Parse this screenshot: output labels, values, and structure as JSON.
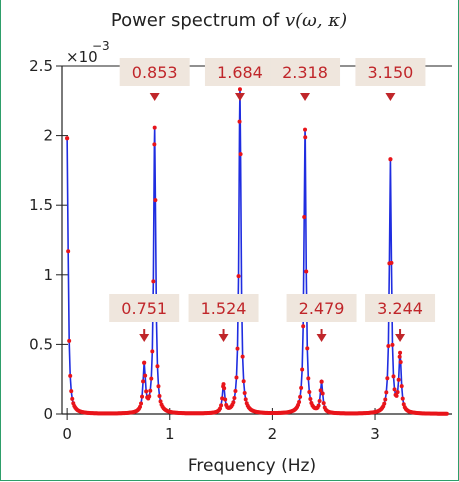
{
  "chart_data": {
    "type": "line",
    "title_prefix": "Power spectrum of ",
    "title_math": "v(ω, κ)",
    "xlabel": "Frequency (Hz)",
    "ylabel": "",
    "scale_label": "×10",
    "scale_exponent": "−3",
    "xlim": [
      -0.05,
      3.75
    ],
    "ylim": [
      0,
      2.5
    ],
    "x_ticks": [
      0,
      1,
      2,
      3
    ],
    "x_tick_labels": [
      "0",
      "1",
      "2",
      "3"
    ],
    "y_ticks": [
      0,
      0.5,
      1,
      1.5,
      2,
      2.5
    ],
    "y_tick_labels": [
      "0",
      "0.5",
      "1",
      "1.5",
      "2",
      "2.5"
    ],
    "grid": false,
    "colors": {
      "line": "#1f2de0",
      "markers": "#e8141a",
      "arrows": "#c0262a",
      "annotation_bg": "#efe6dd"
    },
    "peaks": [
      {
        "x": 0.0,
        "y": 1.98,
        "w": 0.012
      },
      {
        "x": 0.751,
        "y": 0.34,
        "w": 0.014
      },
      {
        "x": 0.853,
        "y": 2.05,
        "w": 0.012
      },
      {
        "x": 1.524,
        "y": 0.2,
        "w": 0.014
      },
      {
        "x": 1.684,
        "y": 2.33,
        "w": 0.012
      },
      {
        "x": 2.318,
        "y": 2.04,
        "w": 0.012
      },
      {
        "x": 2.479,
        "y": 0.22,
        "w": 0.014
      },
      {
        "x": 3.15,
        "y": 1.82,
        "w": 0.012
      },
      {
        "x": 3.244,
        "y": 0.41,
        "w": 0.014
      }
    ],
    "annotations": [
      {
        "label": "0.853",
        "x": 0.853,
        "row": "top"
      },
      {
        "label": "1.684",
        "x": 1.684,
        "row": "top"
      },
      {
        "label": "2.318",
        "x": 2.318,
        "row": "top"
      },
      {
        "label": "3.150",
        "x": 3.15,
        "row": "top"
      },
      {
        "label": "0.751",
        "x": 0.751,
        "row": "bottom"
      },
      {
        "label": "1.524",
        "x": 1.524,
        "row": "bottom"
      },
      {
        "label": "2.479",
        "x": 2.479,
        "row": "bottom"
      },
      {
        "label": "3.244",
        "x": 3.244,
        "row": "bottom"
      }
    ]
  }
}
